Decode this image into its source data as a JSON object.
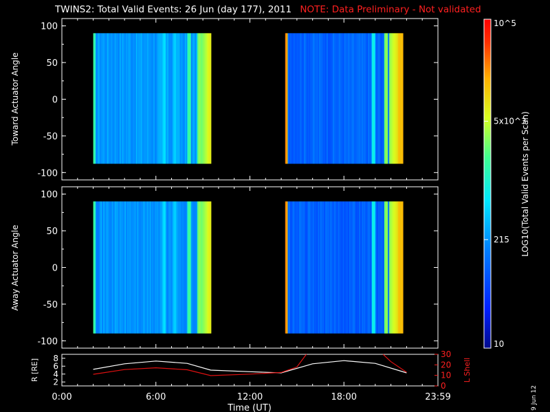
{
  "header": {
    "title": "TWINS2: Total Valid Events: 26 Jun (day 177), 2011",
    "note": "NOTE: Data Preliminary - Not validated",
    "note_color": "#ff2020"
  },
  "side_date": "9 Jun 12",
  "chart_data": [
    {
      "type": "heatmap",
      "title": "",
      "ylabel": "Toward Actuator Angle",
      "ylim": [
        -110,
        110
      ],
      "yticks": [
        "100",
        "50",
        "0",
        "-50",
        "-100"
      ],
      "data_y_range": [
        -88,
        90
      ],
      "scan_blocks": [
        {
          "start": "2:00",
          "end": "9:30",
          "level": 0.34,
          "bright_columns": [
            {
              "t": "2:00",
              "level": 0.57
            },
            {
              "t": "6:30",
              "level": 0.46
            },
            {
              "t": "7:10",
              "level": 0.44
            },
            {
              "t": "8:05",
              "level": 0.58
            },
            {
              "t": "8:45",
              "level": 0.66
            },
            {
              "t": "9:20",
              "level": 0.74
            }
          ]
        },
        {
          "start": "14:15",
          "end": "21:45",
          "level": 0.25,
          "bright_columns": [
            {
              "t": "14:15",
              "level": 0.86
            },
            {
              "t": "19:50",
              "level": 0.5
            },
            {
              "t": "20:40",
              "level": 0.66
            },
            {
              "t": "21:30",
              "level": 0.82
            }
          ]
        }
      ]
    },
    {
      "type": "heatmap",
      "title": "",
      "ylabel": "Away Actuator Angle",
      "ylim": [
        -110,
        110
      ],
      "yticks": [
        "100",
        "50",
        "0",
        "-50",
        "-100"
      ],
      "data_y_range": [
        -90,
        90
      ],
      "scan_blocks": [
        {
          "start": "2:00",
          "end": "9:30",
          "level": 0.33,
          "bright_columns": [
            {
              "t": "2:00",
              "level": 0.57
            },
            {
              "t": "6:30",
              "level": 0.46
            },
            {
              "t": "7:10",
              "level": 0.44
            },
            {
              "t": "8:05",
              "level": 0.58
            },
            {
              "t": "8:45",
              "level": 0.66
            },
            {
              "t": "9:20",
              "level": 0.74
            }
          ]
        },
        {
          "start": "14:15",
          "end": "21:45",
          "level": 0.24,
          "bright_columns": [
            {
              "t": "14:15",
              "level": 0.86
            },
            {
              "t": "19:50",
              "level": 0.5
            },
            {
              "t": "20:40",
              "level": 0.66
            },
            {
              "t": "21:30",
              "level": 0.82
            }
          ]
        }
      ]
    },
    {
      "type": "line",
      "title": "",
      "xlabel": "Time (UT)",
      "xticks": [
        "0:00",
        "6:00",
        "12:00",
        "18:00",
        "23:59"
      ],
      "xlim_hours": [
        0,
        24
      ],
      "left_axis": {
        "label": "R [RE]",
        "ylim": [
          1,
          9
        ],
        "ticks": [
          "8",
          "6",
          "4",
          "2"
        ],
        "color": "#ffffff"
      },
      "right_axis": {
        "label": "L Shell",
        "ylim": [
          0,
          30
        ],
        "ticks": [
          "30",
          "20",
          "10",
          "0"
        ],
        "color": "#ff2020"
      },
      "series": [
        {
          "axis": "left",
          "color": "#ffffff",
          "points": [
            [
              2,
              5.2
            ],
            [
              4,
              6.6
            ],
            [
              6,
              7.3
            ],
            [
              8,
              6.7
            ],
            [
              9.5,
              5.0
            ],
            [
              12,
              4.6
            ],
            [
              14,
              4.3
            ],
            [
              16,
              6.6
            ],
            [
              18,
              7.4
            ],
            [
              20,
              6.7
            ],
            [
              22,
              4.3
            ]
          ]
        },
        {
          "axis": "right",
          "color": "#e01010",
          "points": [
            [
              2,
              11
            ],
            [
              4,
              15.5
            ],
            [
              6,
              17.2
            ],
            [
              8,
              15.3
            ],
            [
              9.5,
              9.8
            ],
            [
              12,
              11.2
            ],
            [
              14,
              12.8
            ],
            [
              15,
              18
            ],
            [
              15.6,
              30
            ]
          ],
          "points_b": [
            [
              20.5,
              30
            ],
            [
              21,
              23
            ],
            [
              22,
              13
            ]
          ]
        }
      ]
    }
  ],
  "colorbar": {
    "label": "LOG10(Total Valid Events per Scan)",
    "ticks": [
      {
        "label": "10",
        "frac": 0.0
      },
      {
        "label": "215",
        "frac": 0.33
      },
      {
        "label": "5x10^3",
        "frac": 0.69
      },
      {
        "label": "10^5",
        "frac": 1.0
      }
    ]
  }
}
